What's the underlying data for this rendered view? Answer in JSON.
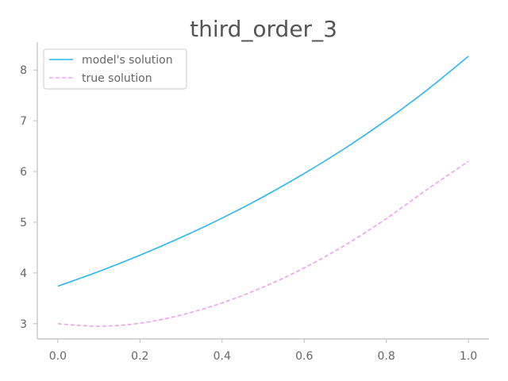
{
  "chart_data": {
    "type": "line",
    "title": "third_order_3",
    "xlabel": "",
    "ylabel": "",
    "xlim": [
      -0.05,
      1.05
    ],
    "ylim": [
      2.7,
      8.55
    ],
    "xticks": [
      0.0,
      0.2,
      0.4,
      0.6,
      0.8,
      1.0
    ],
    "xtick_labels": [
      "0.0",
      "0.2",
      "0.4",
      "0.6",
      "0.8",
      "1.0"
    ],
    "yticks": [
      3,
      4,
      5,
      6,
      7,
      8
    ],
    "ytick_labels": [
      "3",
      "4",
      "5",
      "6",
      "7",
      "8"
    ],
    "grid": false,
    "legend": {
      "position": "top-left"
    },
    "x": [
      0.0,
      0.1,
      0.2,
      0.3,
      0.4,
      0.5,
      0.6,
      0.7,
      0.8,
      0.9,
      1.0
    ],
    "series": [
      {
        "name": "model's solution",
        "color": "#29b6f6",
        "style": "solid",
        "values": [
          3.74,
          4.03,
          4.35,
          4.7,
          5.08,
          5.5,
          5.96,
          6.46,
          7.01,
          7.61,
          8.27
        ]
      },
      {
        "name": "true solution",
        "color": "#f09ef0",
        "style": "dashed",
        "values": [
          3.0,
          2.95,
          3.01,
          3.17,
          3.41,
          3.72,
          4.1,
          4.55,
          5.07,
          5.65,
          6.2
        ]
      }
    ]
  }
}
